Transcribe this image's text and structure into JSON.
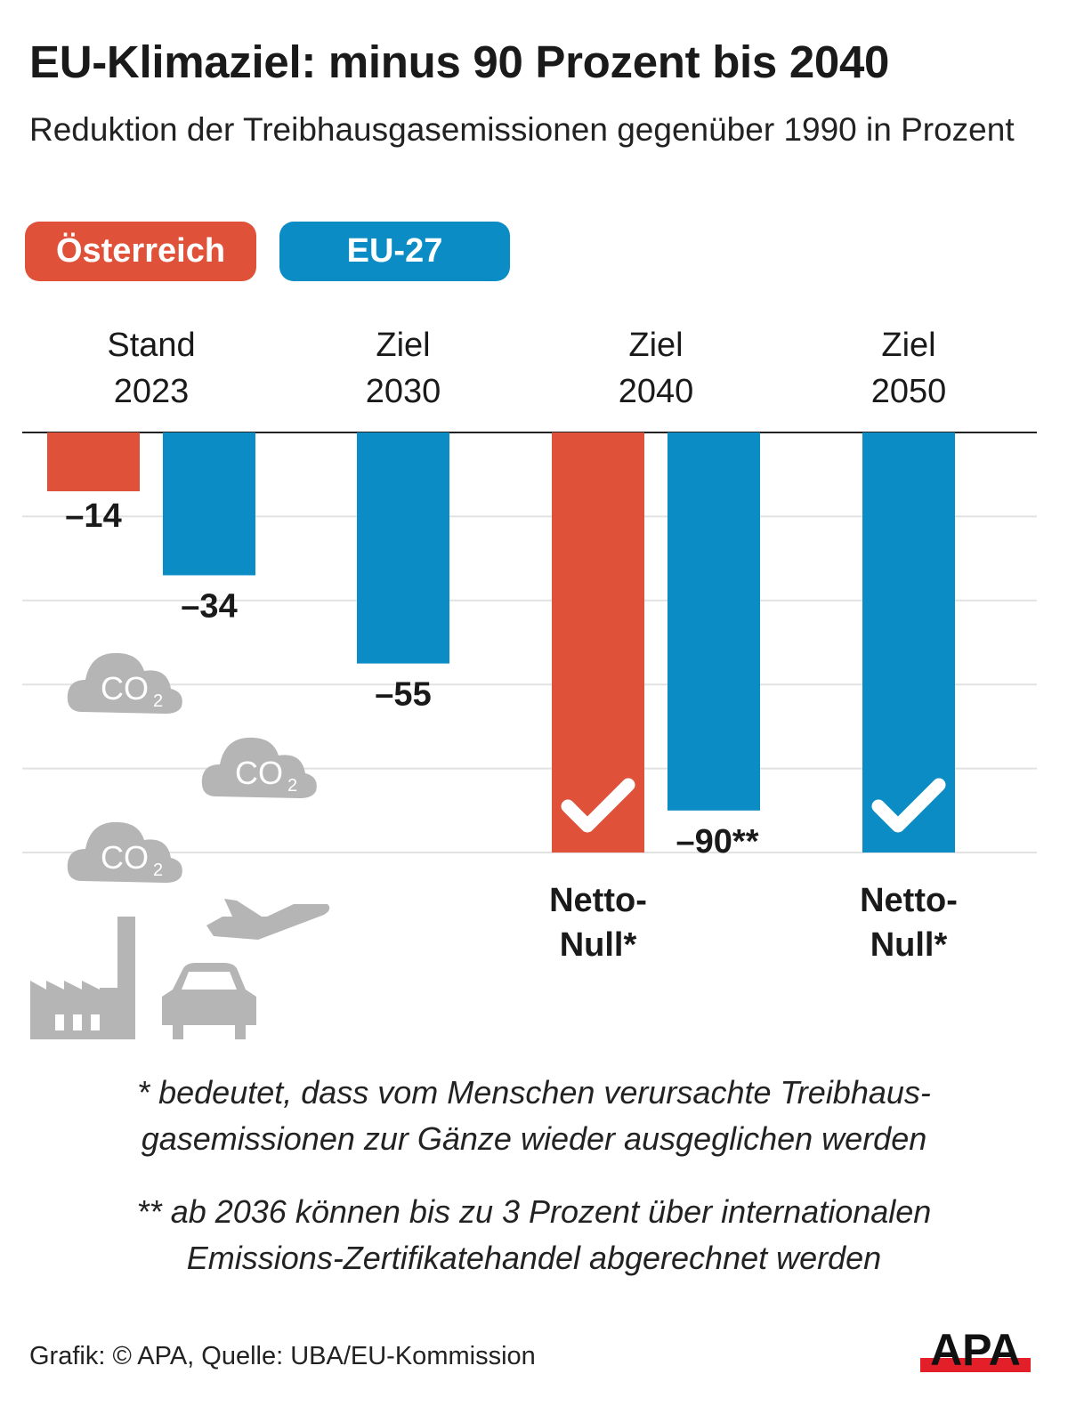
{
  "title": "EU-Klimaziel: minus 90 Prozent bis 2040",
  "subtitle": "Reduktion der Treibhausgasemissionen gegenüber 1990 in Prozent",
  "colors": {
    "oesterreich": "#e0513a",
    "eu27": "#0b8cc4",
    "icons": "#b5b5b5",
    "grid": "#e2e2e2"
  },
  "chart_data": {
    "type": "bar",
    "title": "EU-Klimaziel: minus 90 Prozent bis 2040",
    "categories": [
      [
        "Stand",
        "2023"
      ],
      [
        "Ziel",
        "2030"
      ],
      [
        "Ziel",
        "2040"
      ],
      [
        "Ziel",
        "2050"
      ]
    ],
    "series": [
      {
        "name": "Österreich",
        "values": [
          -14,
          null,
          -100,
          null
        ],
        "labels": [
          "–14",
          null,
          null,
          null
        ],
        "netto_null": [
          false,
          false,
          true,
          false
        ]
      },
      {
        "name": "EU-27",
        "values": [
          -34,
          -55,
          -90,
          -100
        ],
        "labels": [
          "–34",
          "–55",
          "–90**",
          null
        ],
        "netto_null": [
          false,
          false,
          false,
          true
        ]
      }
    ],
    "netto_null_label": [
      "Netto-",
      "Null*"
    ],
    "ylim": [
      -100,
      0
    ],
    "grid": true,
    "legend": "top-left"
  },
  "icons": [
    "co2-cloud",
    "co2-cloud",
    "co2-cloud",
    "factory",
    "airplane",
    "car"
  ],
  "co2_label": "CO",
  "co2_sub": "2",
  "footnotes": [
    [
      "* bedeutet, dass vom Menschen verursachte Treibhaus-",
      "gasemissionen zur Gänze wieder ausgeglichen werden"
    ],
    [
      "** ab 2036 können bis zu 3 Prozent über internationalen",
      "Emissions-Zertifikatehandel abgerechnet werden"
    ]
  ],
  "source": "Grafik: © APA, Quelle: UBA/EU-Kommission",
  "logo": "APA"
}
